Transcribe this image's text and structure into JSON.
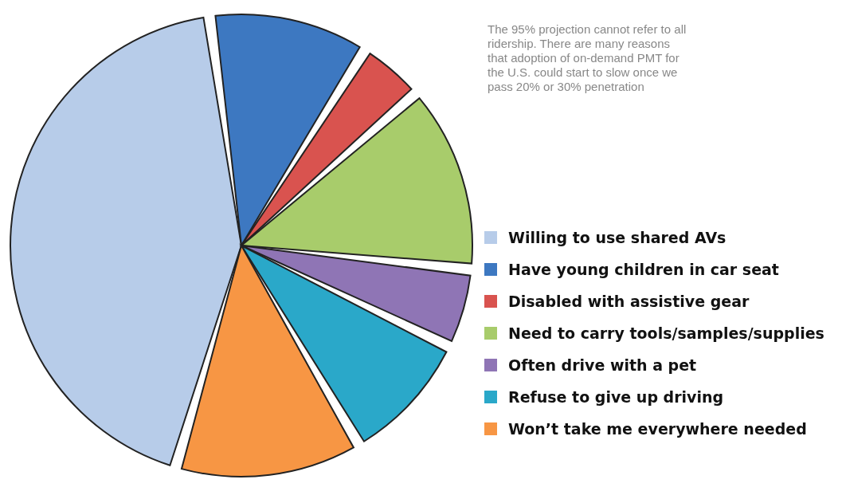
{
  "chart_data": {
    "type": "pie",
    "categories": [
      "Willing to use shared AVs",
      "Have young children in car seat",
      "Disabled with assistive gear",
      "Need to carry tools/samples/supplies",
      "Often drive with a pet",
      "Refuse to give up driving",
      "Won’t take me everywhere needed"
    ],
    "values": [
      45,
      11,
      4,
      13,
      5,
      9,
      13
    ],
    "colors": [
      "#b7cce9",
      "#3d78c1",
      "#d9534f",
      "#a8cc6b",
      "#8f75b5",
      "#2aa8c9",
      "#f79644"
    ],
    "legend": "right",
    "annotations": [
      "The 95% projection cannot refer to all ridership. There are many reasons that adoption of on-demand PMT for the U.S. could start to slow once we pass 20% or 30% penetration"
    ]
  }
}
